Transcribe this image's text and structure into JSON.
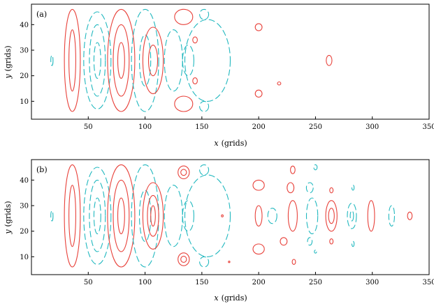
{
  "colors": {
    "positive": "#e8413a",
    "negative": "#21b8bf",
    "axis": "#000000"
  },
  "chart_data": [
    {
      "type": "contour",
      "panel_label": "(a)",
      "xlabel_var": "x",
      "xlabel_unit": "(grids)",
      "ylabel_var": "y",
      "ylabel_unit": "(grids)",
      "xlim": [
        0,
        350
      ],
      "ylim": [
        3,
        48
      ],
      "xticks": [
        "50",
        "100",
        "150",
        "200",
        "250",
        "300",
        "350"
      ],
      "yticks": [
        "10",
        "20",
        "30",
        "40"
      ],
      "contours": [
        {
          "sign": "neg",
          "cx": 18,
          "cy": 26,
          "rx": 1,
          "ry": 2
        },
        {
          "sign": "pos",
          "cx": 36,
          "cy": 26,
          "rx": 7,
          "ry": 20
        },
        {
          "sign": "pos",
          "cx": 36,
          "cy": 26,
          "rx": 3,
          "ry": 12
        },
        {
          "sign": "neg",
          "cx": 58,
          "cy": 26,
          "rx": 12,
          "ry": 19
        },
        {
          "sign": "neg",
          "cx": 58,
          "cy": 26,
          "rx": 7,
          "ry": 14
        },
        {
          "sign": "neg",
          "cx": 58,
          "cy": 26,
          "rx": 3,
          "ry": 7
        },
        {
          "sign": "pos",
          "cx": 79,
          "cy": 26,
          "rx": 12,
          "ry": 20
        },
        {
          "sign": "pos",
          "cx": 79,
          "cy": 26,
          "rx": 7,
          "ry": 14
        },
        {
          "sign": "pos",
          "cx": 79,
          "cy": 26,
          "rx": 3,
          "ry": 7
        },
        {
          "sign": "neg",
          "cx": 100,
          "cy": 26,
          "rx": 12,
          "ry": 20
        },
        {
          "sign": "neg",
          "cx": 100,
          "cy": 26,
          "rx": 5,
          "ry": 10
        },
        {
          "sign": "pos",
          "cx": 107,
          "cy": 26,
          "rx": 9,
          "ry": 13
        },
        {
          "sign": "pos",
          "cx": 107,
          "cy": 26,
          "rx": 4,
          "ry": 6
        },
        {
          "sign": "pos",
          "cx": 134,
          "cy": 43,
          "rx": 8,
          "ry": 3
        },
        {
          "sign": "pos",
          "cx": 134,
          "cy": 9,
          "rx": 8,
          "ry": 3
        },
        {
          "sign": "neg",
          "cx": 125,
          "cy": 26,
          "rx": 8,
          "ry": 12
        },
        {
          "sign": "neg",
          "cx": 138,
          "cy": 26,
          "rx": 5,
          "ry": 6
        },
        {
          "sign": "neg",
          "cx": 155,
          "cy": 26,
          "rx": 20,
          "ry": 16
        },
        {
          "sign": "neg",
          "cx": 152,
          "cy": 44,
          "rx": 4,
          "ry": 2
        },
        {
          "sign": "neg",
          "cx": 152,
          "cy": 8,
          "rx": 4,
          "ry": 2
        },
        {
          "sign": "pos",
          "cx": 144,
          "cy": 34,
          "rx": 2,
          "ry": 1.2
        },
        {
          "sign": "pos",
          "cx": 144,
          "cy": 18,
          "rx": 2,
          "ry": 1.2
        },
        {
          "sign": "pos",
          "cx": 200,
          "cy": 39,
          "rx": 3,
          "ry": 1.4
        },
        {
          "sign": "pos",
          "cx": 200,
          "cy": 13,
          "rx": 3,
          "ry": 1.4
        },
        {
          "sign": "pos",
          "cx": 218,
          "cy": 17,
          "rx": 1.5,
          "ry": 0.6
        },
        {
          "sign": "pos",
          "cx": 262,
          "cy": 26,
          "rx": 2.5,
          "ry": 2
        }
      ]
    },
    {
      "type": "contour",
      "panel_label": "(b)",
      "xlabel_var": "x",
      "xlabel_unit": "(grids)",
      "ylabel_var": "y",
      "ylabel_unit": "(grids)",
      "xlim": [
        0,
        350
      ],
      "ylim": [
        3,
        48
      ],
      "xticks": [
        "50",
        "100",
        "150",
        "200",
        "250",
        "300",
        "350"
      ],
      "yticks": [
        "10",
        "20",
        "30",
        "40"
      ],
      "contours": [
        {
          "sign": "neg",
          "cx": 18,
          "cy": 26,
          "rx": 1,
          "ry": 2
        },
        {
          "sign": "pos",
          "cx": 36,
          "cy": 26,
          "rx": 7,
          "ry": 20
        },
        {
          "sign": "pos",
          "cx": 36,
          "cy": 26,
          "rx": 3,
          "ry": 12
        },
        {
          "sign": "neg",
          "cx": 58,
          "cy": 26,
          "rx": 12,
          "ry": 19
        },
        {
          "sign": "neg",
          "cx": 58,
          "cy": 26,
          "rx": 7,
          "ry": 14
        },
        {
          "sign": "neg",
          "cx": 58,
          "cy": 26,
          "rx": 3,
          "ry": 7
        },
        {
          "sign": "pos",
          "cx": 79,
          "cy": 26,
          "rx": 12,
          "ry": 20
        },
        {
          "sign": "pos",
          "cx": 79,
          "cy": 26,
          "rx": 7,
          "ry": 14
        },
        {
          "sign": "pos",
          "cx": 79,
          "cy": 26,
          "rx": 3,
          "ry": 7
        },
        {
          "sign": "neg",
          "cx": 100,
          "cy": 26,
          "rx": 12,
          "ry": 20
        },
        {
          "sign": "neg",
          "cx": 100,
          "cy": 26,
          "rx": 5,
          "ry": 10
        },
        {
          "sign": "pos",
          "cx": 107,
          "cy": 26,
          "rx": 9,
          "ry": 13
        },
        {
          "sign": "pos",
          "cx": 107,
          "cy": 26,
          "rx": 5,
          "ry": 8
        },
        {
          "sign": "pos",
          "cx": 107,
          "cy": 26,
          "rx": 2,
          "ry": 4
        },
        {
          "sign": "pos",
          "cx": 134,
          "cy": 43,
          "rx": 5,
          "ry": 2.5
        },
        {
          "sign": "pos",
          "cx": 134,
          "cy": 43,
          "rx": 2.5,
          "ry": 1.2
        },
        {
          "sign": "pos",
          "cx": 134,
          "cy": 9,
          "rx": 5,
          "ry": 2.5
        },
        {
          "sign": "pos",
          "cx": 134,
          "cy": 9,
          "rx": 2.5,
          "ry": 1.2
        },
        {
          "sign": "neg",
          "cx": 125,
          "cy": 26,
          "rx": 8,
          "ry": 12
        },
        {
          "sign": "neg",
          "cx": 138,
          "cy": 26,
          "rx": 5,
          "ry": 6
        },
        {
          "sign": "neg",
          "cx": 155,
          "cy": 26,
          "rx": 20,
          "ry": 16
        },
        {
          "sign": "neg",
          "cx": 152,
          "cy": 44,
          "rx": 4,
          "ry": 2
        },
        {
          "sign": "neg",
          "cx": 152,
          "cy": 8,
          "rx": 4,
          "ry": 2
        },
        {
          "sign": "pos",
          "cx": 168,
          "cy": 26,
          "rx": 0.8,
          "ry": 0.4
        },
        {
          "sign": "pos",
          "cx": 174,
          "cy": 8,
          "rx": 0.7,
          "ry": 0.3
        },
        {
          "sign": "pos",
          "cx": 200,
          "cy": 38,
          "rx": 5,
          "ry": 2
        },
        {
          "sign": "pos",
          "cx": 200,
          "cy": 13,
          "rx": 5,
          "ry": 2
        },
        {
          "sign": "pos",
          "cx": 200,
          "cy": 26,
          "rx": 3,
          "ry": 4
        },
        {
          "sign": "neg",
          "cx": 212,
          "cy": 26,
          "rx": 4,
          "ry": 3
        },
        {
          "sign": "pos",
          "cx": 230,
          "cy": 44,
          "rx": 2,
          "ry": 1.5
        },
        {
          "sign": "pos",
          "cx": 228,
          "cy": 37,
          "rx": 3,
          "ry": 2
        },
        {
          "sign": "pos",
          "cx": 222,
          "cy": 16,
          "rx": 3,
          "ry": 1.5
        },
        {
          "sign": "pos",
          "cx": 231,
          "cy": 8,
          "rx": 1.5,
          "ry": 1
        },
        {
          "sign": "pos",
          "cx": 230,
          "cy": 26,
          "rx": 4,
          "ry": 6
        },
        {
          "sign": "neg",
          "cx": 247,
          "cy": 26,
          "rx": 5,
          "ry": 7
        },
        {
          "sign": "neg",
          "cx": 250,
          "cy": 45,
          "rx": 1.5,
          "ry": 1
        },
        {
          "sign": "neg",
          "cx": 245,
          "cy": 37,
          "rx": 3,
          "ry": 2
        },
        {
          "sign": "neg",
          "cx": 245,
          "cy": 16,
          "rx": 2,
          "ry": 1.5
        },
        {
          "sign": "neg",
          "cx": 250,
          "cy": 12,
          "rx": 1,
          "ry": 0.6
        },
        {
          "sign": "pos",
          "cx": 264,
          "cy": 26,
          "rx": 5,
          "ry": 6
        },
        {
          "sign": "pos",
          "cx": 264,
          "cy": 26,
          "rx": 2.5,
          "ry": 3
        },
        {
          "sign": "pos",
          "cx": 264,
          "cy": 36,
          "rx": 1.5,
          "ry": 1
        },
        {
          "sign": "pos",
          "cx": 264,
          "cy": 16,
          "rx": 1.5,
          "ry": 1
        },
        {
          "sign": "neg",
          "cx": 282,
          "cy": 26,
          "rx": 4,
          "ry": 5
        },
        {
          "sign": "neg",
          "cx": 282,
          "cy": 26,
          "rx": 1.5,
          "ry": 2
        },
        {
          "sign": "neg",
          "cx": 283,
          "cy": 37,
          "rx": 1,
          "ry": 1
        },
        {
          "sign": "neg",
          "cx": 283,
          "cy": 15,
          "rx": 1,
          "ry": 1
        },
        {
          "sign": "pos",
          "cx": 299,
          "cy": 26,
          "rx": 3,
          "ry": 6
        },
        {
          "sign": "neg",
          "cx": 317,
          "cy": 26,
          "rx": 2.5,
          "ry": 4
        },
        {
          "sign": "pos",
          "cx": 333,
          "cy": 26,
          "rx": 2,
          "ry": 1.5
        }
      ]
    }
  ]
}
